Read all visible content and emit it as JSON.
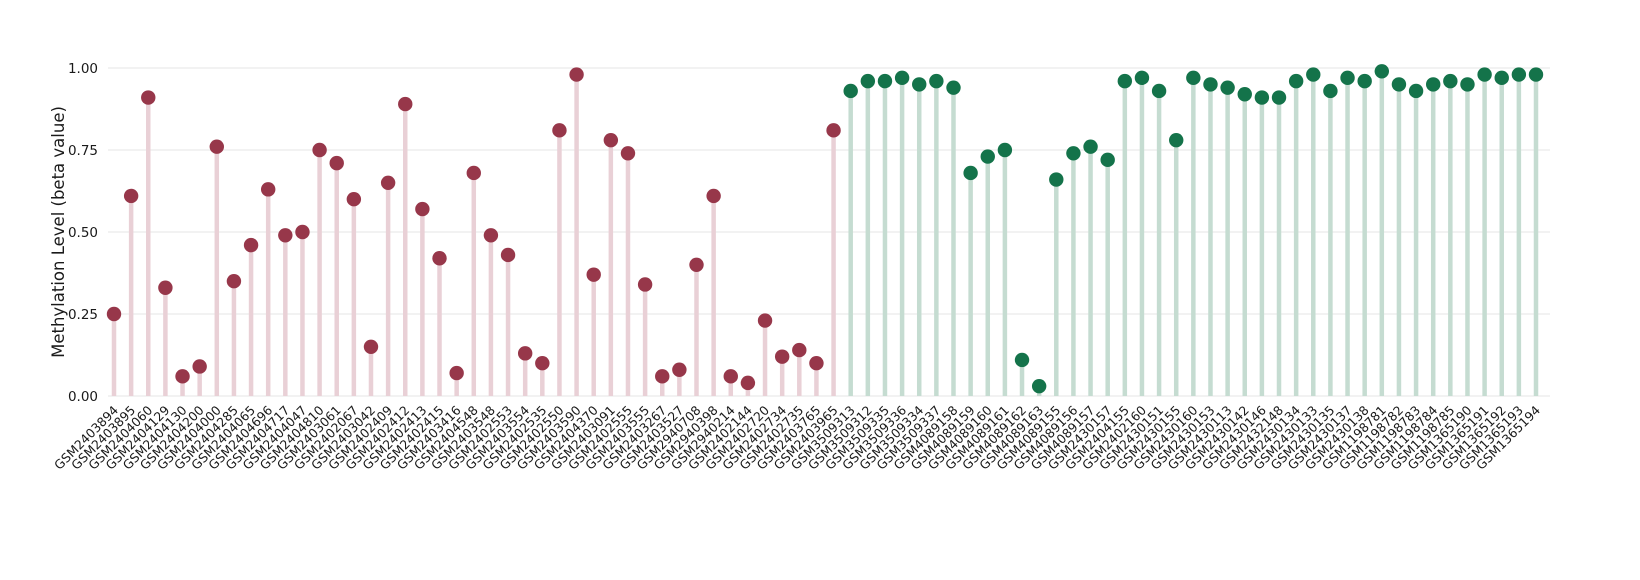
{
  "chart_data": {
    "type": "scatter",
    "style": "lollipop",
    "title": "",
    "xlabel": "",
    "ylabel": "Methylation Level (beta value)",
    "ylim": [
      0,
      1.0
    ],
    "yticks": [
      0,
      0.25,
      0.5,
      0.75,
      1.0
    ],
    "ytick_labels": [
      "0.00",
      "0.25",
      "0.50",
      "0.75",
      "1.00"
    ],
    "grid": "horizontal",
    "legend": "none",
    "group_split_index": 43,
    "groups": [
      {
        "name": "group-low-methylation",
        "dot_color": "#97374a",
        "stem_color": "#e9d0d6"
      },
      {
        "name": "group-high-methylation",
        "dot_color": "#14734a",
        "stem_color": "#c5dcd1"
      }
    ],
    "categories": [
      "GSM2403894",
      "GSM2403895",
      "GSM2404060",
      "GSM2404129",
      "GSM2404130",
      "GSM2404200",
      "GSM2404000",
      "GSM2404285",
      "GSM2404065",
      "GSM2404696",
      "GSM2404717",
      "GSM2404047",
      "GSM2404810",
      "GSM2403061",
      "GSM2402067",
      "GSM2403042",
      "GSM2402409",
      "GSM2402412",
      "GSM2402413",
      "GSM2402415",
      "GSM2403416",
      "GSM2404548",
      "GSM2403548",
      "GSM2402553",
      "GSM2403554",
      "GSM2402535",
      "GSM2402550",
      "GSM2403590",
      "GSM2404370",
      "GSM2403091",
      "GSM2402555",
      "GSM2403555",
      "GSM2403267",
      "GSM2403527",
      "GSM2940708",
      "GSM2940398",
      "GSM2940214",
      "GSM2402144",
      "GSM2402720",
      "GSM2402734",
      "GSM2402735",
      "GSM2403765",
      "GSM2403965",
      "GSM3509313",
      "GSM3509312",
      "GSM3509335",
      "GSM3509336",
      "GSM3509334",
      "GSM3509337",
      "GSM4089158",
      "GSM4089159",
      "GSM4089160",
      "GSM4089161",
      "GSM4089162",
      "GSM4089163",
      "GSM4089155",
      "GSM4089156",
      "GSM4089157",
      "GSM2430157",
      "GSM2404155",
      "GSM2402160",
      "GSM2430151",
      "GSM2430155",
      "GSM2430160",
      "GSM2430153",
      "GSM2430113",
      "GSM2430142",
      "GSM2430146",
      "GSM2432148",
      "GSM2430134",
      "GSM2430133",
      "GSM2430135",
      "GSM2430137",
      "GSM2430138",
      "GSM1198781",
      "GSM1198782",
      "GSM1198783",
      "GSM1198784",
      "GSM1198785",
      "GSM1365190",
      "GSM1365191",
      "GSM1365192",
      "GSM1365193",
      "GSM1365194"
    ],
    "values": [
      0.25,
      0.61,
      0.91,
      0.33,
      0.06,
      0.09,
      0.76,
      0.35,
      0.46,
      0.63,
      0.49,
      0.5,
      0.75,
      0.71,
      0.6,
      0.15,
      0.65,
      0.89,
      0.57,
      0.42,
      0.07,
      0.68,
      0.49,
      0.43,
      0.13,
      0.1,
      0.81,
      0.98,
      0.37,
      0.78,
      0.74,
      0.34,
      0.06,
      0.08,
      0.4,
      0.61,
      0.06,
      0.04,
      0.23,
      0.12,
      0.14,
      0.1,
      0.81,
      0.93,
      0.96,
      0.96,
      0.97,
      0.95,
      0.96,
      0.94,
      0.68,
      0.73,
      0.75,
      0.11,
      0.03,
      0.66,
      0.74,
      0.76,
      0.72,
      0.96,
      0.97,
      0.93,
      0.78,
      0.97,
      0.95,
      0.94,
      0.92,
      0.91,
      0.91,
      0.96,
      0.98,
      0.93,
      0.97,
      0.96,
      0.99,
      0.95,
      0.93,
      0.95,
      0.96,
      0.95,
      0.98,
      0.97,
      0.98,
      0.98
    ]
  }
}
